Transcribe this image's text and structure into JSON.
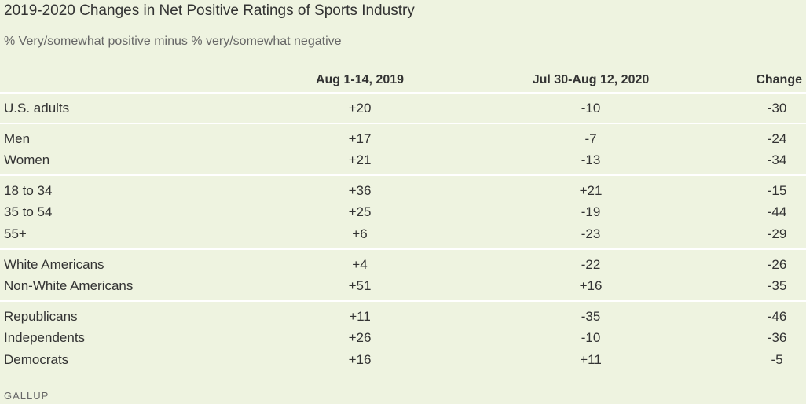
{
  "chart_data": {
    "type": "table",
    "title": "2019-2020 Changes in Net Positive Ratings of Sports Industry",
    "subtitle": "% Very/somewhat positive minus % very/somewhat negative",
    "columns": [
      "Aug 1-14, 2019",
      "Jul 30-Aug 12, 2020",
      "Change"
    ],
    "groups": [
      {
        "rows": [
          {
            "label": "U.S. adults",
            "values": [
              "+20",
              "-10",
              "-30"
            ]
          }
        ]
      },
      {
        "rows": [
          {
            "label": "Men",
            "values": [
              "+17",
              "-7",
              "-24"
            ]
          },
          {
            "label": "Women",
            "values": [
              "+21",
              "-13",
              "-34"
            ]
          }
        ]
      },
      {
        "rows": [
          {
            "label": "18 to 34",
            "values": [
              "+36",
              "+21",
              "-15"
            ]
          },
          {
            "label": "35 to 54",
            "values": [
              "+25",
              "-19",
              "-44"
            ]
          },
          {
            "label": "55+",
            "values": [
              "+6",
              "-23",
              "-29"
            ]
          }
        ]
      },
      {
        "rows": [
          {
            "label": "White Americans",
            "values": [
              "+4",
              "-22",
              "-26"
            ]
          },
          {
            "label": "Non-White Americans",
            "values": [
              "+51",
              "+16",
              "-35"
            ]
          }
        ]
      },
      {
        "rows": [
          {
            "label": "Republicans",
            "values": [
              "+11",
              "-35",
              "-46"
            ]
          },
          {
            "label": "Independents",
            "values": [
              "+26",
              "-10",
              "-36"
            ]
          },
          {
            "label": "Democrats",
            "values": [
              "+16",
              "+11",
              "-5"
            ]
          }
        ]
      }
    ],
    "source": "GALLUP"
  }
}
